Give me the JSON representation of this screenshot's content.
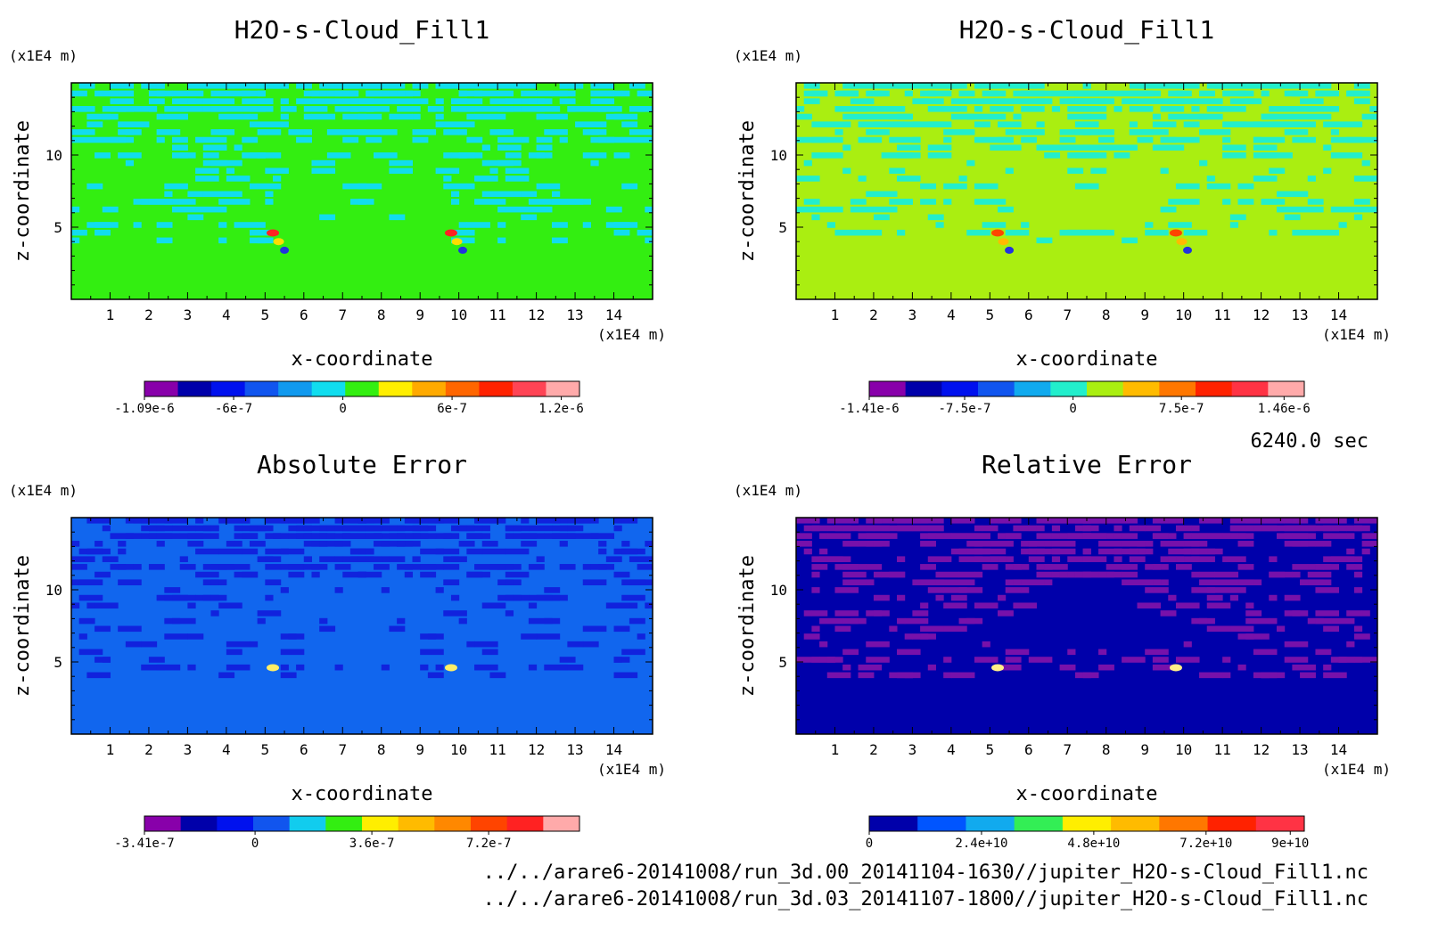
{
  "figure": {
    "time_label": "6240.0 sec",
    "files": [
      "../../arare6-20141008/run_3d.00_20141104-1630//jupiter_H2O-s-Cloud_Fill1.nc",
      "../../arare6-20141008/run_3d.03_20141107-1800//jupiter_H2O-s-Cloud_Fill1.nc"
    ]
  },
  "chart_data": [
    {
      "type": "heatmap",
      "title": "H2O-s-Cloud_Fill1",
      "xlabel": "x-coordinate",
      "ylabel": "z-coordinate",
      "x_unit": "(x1E4 m)",
      "y_unit": "(x1E4 m)",
      "xlim": [
        0,
        15
      ],
      "ylim": [
        0,
        15
      ],
      "xticks": [
        1,
        2,
        3,
        4,
        5,
        6,
        7,
        8,
        9,
        10,
        11,
        12,
        13,
        14
      ],
      "yticks": [
        5,
        10
      ],
      "background": "#33ee11",
      "pattern_color": "#11ddee",
      "hotspot_colors": [
        "#ff2222",
        "#ffdd00",
        "#2233dd"
      ],
      "colorbar": {
        "colors": [
          "#8800aa",
          "#0000aa",
          "#0011ee",
          "#1155ee",
          "#1199ee",
          "#11ddee",
          "#33ee11",
          "#ffee00",
          "#ffaa00",
          "#ff6600",
          "#ff2200",
          "#ff4455",
          "#ffaaaa"
        ],
        "labels": [
          "-1.09e-6",
          "-6e-7",
          "0",
          "6e-7",
          "1.2e-6"
        ],
        "range": [
          -1.09e-06,
          1.3e-06
        ]
      }
    },
    {
      "type": "heatmap",
      "title": "H2O-s-Cloud_Fill1",
      "xlabel": "x-coordinate",
      "ylabel": "z-coordinate",
      "x_unit": "(x1E4 m)",
      "y_unit": "(x1E4 m)",
      "xlim": [
        0,
        15
      ],
      "ylim": [
        0,
        15
      ],
      "xticks": [
        1,
        2,
        3,
        4,
        5,
        6,
        7,
        8,
        9,
        10,
        11,
        12,
        13,
        14
      ],
      "yticks": [
        5,
        10
      ],
      "background": "#aaee11",
      "pattern_color": "#22eecc",
      "hotspot_colors": [
        "#ff4400",
        "#ffbb00",
        "#2233dd"
      ],
      "colorbar": {
        "colors": [
          "#8800aa",
          "#0000aa",
          "#0011ee",
          "#1155ee",
          "#11aaee",
          "#22eecc",
          "#aaee11",
          "#ffbb00",
          "#ff7700",
          "#ff2200",
          "#ff3344",
          "#ffaaaa"
        ],
        "labels": [
          "-1.41e-6",
          "-7.5e-7",
          "0",
          "7.5e-7",
          "1.46e-6"
        ],
        "range": [
          -1.41e-06,
          1.6e-06
        ]
      }
    },
    {
      "type": "heatmap",
      "title": "Absolute Error",
      "xlabel": "x-coordinate",
      "ylabel": "z-coordinate",
      "x_unit": "(x1E4 m)",
      "y_unit": "(x1E4 m)",
      "xlim": [
        0,
        15
      ],
      "ylim": [
        0,
        15
      ],
      "xticks": [
        1,
        2,
        3,
        4,
        5,
        6,
        7,
        8,
        9,
        10,
        11,
        12,
        13,
        14
      ],
      "yticks": [
        5,
        10
      ],
      "background": "#1166ee",
      "pattern_color": "#1122dd",
      "hotspot_colors": [
        "#ffee66"
      ],
      "colorbar": {
        "colors": [
          "#8800aa",
          "#0000aa",
          "#0011ee",
          "#1155ee",
          "#11ccee",
          "#33ee11",
          "#ffee00",
          "#ffbb00",
          "#ff8800",
          "#ff4400",
          "#ff2222",
          "#ffaaaa"
        ],
        "labels": [
          "-3.41e-7",
          "0",
          "3.6e-7",
          "7.2e-7"
        ],
        "range": [
          -3.41e-07,
          1e-06
        ]
      }
    },
    {
      "type": "heatmap",
      "title": "Relative Error",
      "xlabel": "x-coordinate",
      "ylabel": "z-coordinate",
      "x_unit": "(x1E4 m)",
      "y_unit": "(x1E4 m)",
      "xlim": [
        0,
        15
      ],
      "ylim": [
        0,
        15
      ],
      "xticks": [
        1,
        2,
        3,
        4,
        5,
        6,
        7,
        8,
        9,
        10,
        11,
        12,
        13,
        14
      ],
      "yticks": [
        5,
        10
      ],
      "background": "#0000aa",
      "pattern_color": "#7711aa",
      "hotspot_colors": [
        "#ffee88"
      ],
      "colorbar": {
        "colors": [
          "#0000aa",
          "#0055ff",
          "#11aaee",
          "#33ee55",
          "#ffee00",
          "#ffbb00",
          "#ff7700",
          "#ff2200",
          "#ff3344"
        ],
        "labels": [
          "0",
          "2.4e+10",
          "4.8e+10",
          "7.2e+10",
          "9e+10"
        ],
        "range": [
          0,
          93000000000.0
        ]
      }
    }
  ]
}
